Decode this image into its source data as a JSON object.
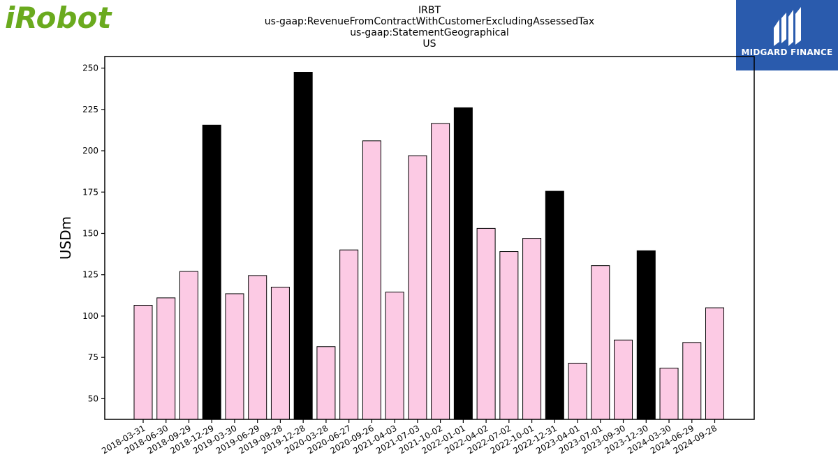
{
  "logos": {
    "left_text": "iRobot",
    "left_color": "#6aaa1e",
    "right_text": "MIDGARD FINANCE",
    "right_bg": "#2a5bad"
  },
  "chart_data": {
    "type": "bar",
    "title_lines": [
      "IRBT",
      "us-gaap:RevenueFromContractWithCustomerExcludingAssessedTax",
      "us-gaap:StatementGeographical",
      "US"
    ],
    "xlabel": "",
    "ylabel": "USDm",
    "ylim": [
      37.5,
      257
    ],
    "yticks": [
      50,
      75,
      100,
      125,
      150,
      175,
      200,
      225,
      250
    ],
    "grid": false,
    "colors": {
      "normal": "#fccae4",
      "highlight": "#000000",
      "edge": "#000000"
    },
    "categories": [
      "2018-03-31",
      "2018-06-30",
      "2018-09-29",
      "2018-12-29",
      "2019-03-30",
      "2019-06-29",
      "2019-09-28",
      "2019-12-28",
      "2020-03-28",
      "2020-06-27",
      "2020-09-26",
      "2021-04-03",
      "2021-07-03",
      "2021-10-02",
      "2022-01-01",
      "2022-04-02",
      "2022-07-02",
      "2022-10-01",
      "2022-12-31",
      "2023-04-01",
      "2023-07-01",
      "2023-09-30",
      "2023-12-30",
      "2024-03-30",
      "2024-06-29",
      "2024-09-28"
    ],
    "values": [
      106.5,
      111,
      127,
      215.5,
      113.5,
      124.5,
      117.5,
      247.5,
      81.5,
      140,
      206,
      114.5,
      197,
      216.5,
      226,
      153,
      139,
      147,
      175.5,
      71.5,
      130.5,
      85.5,
      139.5,
      68.5,
      84,
      105
    ],
    "highlight": [
      false,
      false,
      false,
      true,
      false,
      false,
      false,
      true,
      false,
      false,
      false,
      false,
      false,
      false,
      true,
      false,
      false,
      false,
      true,
      false,
      false,
      false,
      true,
      false,
      false,
      false
    ]
  }
}
